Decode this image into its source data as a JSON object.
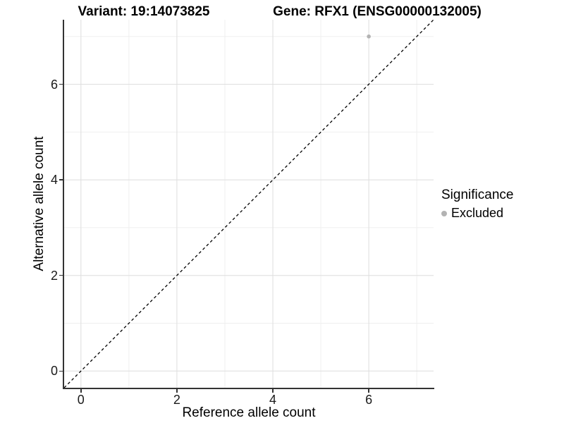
{
  "chart_data": {
    "type": "scatter",
    "title_left": "Variant: 19:14073825",
    "title_right": "Gene: RFX1 (ENSG00000132005)",
    "xlabel": "Reference allele count",
    "ylabel": "Alternative allele count",
    "xlim": [
      0,
      7
    ],
    "ylim": [
      0,
      7
    ],
    "x_ticks": [
      0,
      2,
      4,
      6
    ],
    "y_ticks": [
      0,
      2,
      4,
      6
    ],
    "x_minor_ticks": [
      1,
      3,
      5,
      7
    ],
    "y_minor_ticks": [
      1,
      3,
      5,
      7
    ],
    "grid": true,
    "identity_line": {
      "slope": 1,
      "intercept": 0,
      "style": "dashed",
      "color": "#000000"
    },
    "series": [
      {
        "name": "Excluded",
        "points": [
          {
            "x": 6,
            "y": 7
          }
        ],
        "color": "#b3b3b3"
      }
    ],
    "legend": {
      "title": "Significance",
      "position": "right",
      "entries": [
        {
          "label": "Excluded",
          "color": "#b3b3b3"
        }
      ]
    },
    "colors": {
      "point": "#b3b3b3",
      "grid_major": "#dedede",
      "grid_minor": "#efefef",
      "axis": "#333333",
      "background": "#ffffff"
    }
  }
}
